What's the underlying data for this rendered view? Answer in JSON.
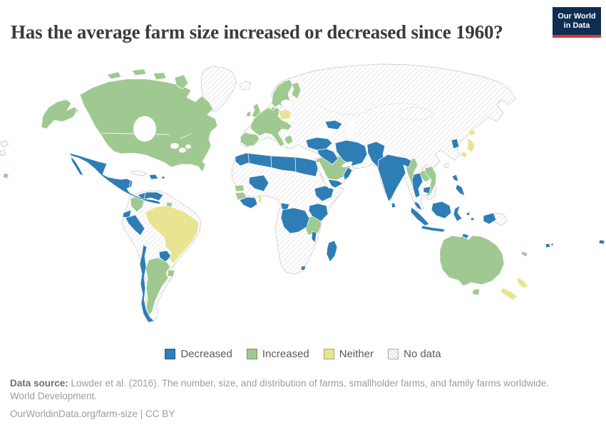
{
  "header": {
    "title": "Has the average farm size increased or decreased since 1960?",
    "logo": {
      "line1": "Our World",
      "line2": "in Data"
    }
  },
  "legend": {
    "items": [
      {
        "label": "Decreased",
        "key": "decreased",
        "type": "fill"
      },
      {
        "label": "Increased",
        "key": "increased",
        "type": "fill"
      },
      {
        "label": "Neither",
        "key": "neither",
        "type": "fill"
      },
      {
        "label": "No data",
        "key": "no_data",
        "type": "hatch"
      }
    ]
  },
  "footer": {
    "datasource_label": "Data source:",
    "datasource_text": " Lowder et al. (2016). The number, size, and distribution of farms, smallholder farms, and family farms worldwide. World Development.",
    "license_line": "OurWorldinData.org/farm-size | CC BY"
  },
  "colors": {
    "decreased": "#2e7eb5",
    "increased": "#a0c991",
    "neither": "#e9e491",
    "hatch_line": "#dcdcdc",
    "border": "#c6c6c6",
    "title": "#3b3b3b",
    "legend_text": "#5a5a5a",
    "footer_text": "#9c9c9c",
    "footer_label": "#6f6f6f",
    "logo_bg": "#0d2d52",
    "logo_bar": "#d8352e"
  },
  "chart_data": {
    "type": "choropleth_map",
    "title": "Has the average farm size increased or decreased since 1960?",
    "legend_entries": [
      "Decreased",
      "Increased",
      "Neither",
      "No data"
    ],
    "categories": {
      "Decreased": [
        "Mexico",
        "Guatemala",
        "Honduras",
        "Nicaragua",
        "Costa Rica",
        "Panama",
        "Dominican Republic",
        "Venezuela",
        "Ecuador",
        "Peru",
        "Chile",
        "Paraguay",
        "Morocco",
        "Algeria",
        "Libya",
        "Egypt",
        "Mali",
        "Cote d'Ivoire",
        "Ghana",
        "Cameroon",
        "Democratic Republic of Congo",
        "Uganda",
        "Kenya",
        "Ethiopia",
        "Malawi",
        "Lesotho",
        "Madagascar",
        "Yemen",
        "Oman",
        "Turkey",
        "Syria",
        "Iraq",
        "Iran",
        "Pakistan",
        "India",
        "Bangladesh",
        "Sri Lanka",
        "Thailand",
        "Cambodia",
        "Malaysia",
        "Indonesia",
        "Philippines",
        "South Korea",
        "Ukraine",
        "Fiji"
      ],
      "Increased": [
        "United States",
        "Canada",
        "Colombia",
        "Suriname",
        "Argentina",
        "Uruguay",
        "United Kingdom",
        "Ireland",
        "France",
        "Spain",
        "Portugal",
        "Germany",
        "Norway",
        "Sweden",
        "Finland",
        "Italy",
        "Greece",
        "Austria",
        "Saudi Arabia",
        "Senegal",
        "Guinea",
        "Tanzania",
        "Myanmar",
        "Laos",
        "Vietnam",
        "Australia",
        "New Caledonia"
      ],
      "Neither": [
        "Brazil",
        "Poland",
        "Japan",
        "New Zealand",
        "Benin"
      ],
      "No data": [
        "Greenland",
        "Iceland",
        "Russia",
        "China",
        "Mongolia",
        "Kazakhstan",
        "Central Asia",
        "North Korea",
        "Bolivia",
        "Guyana",
        "Cuba",
        "Sudan",
        "Somalia",
        "Nigeria",
        "Niger",
        "Chad",
        "Mauritania",
        "Angola",
        "Zambia",
        "Mozambique",
        "Botswana",
        "Namibia",
        "South Africa",
        "Papua New Guinea"
      ]
    }
  }
}
